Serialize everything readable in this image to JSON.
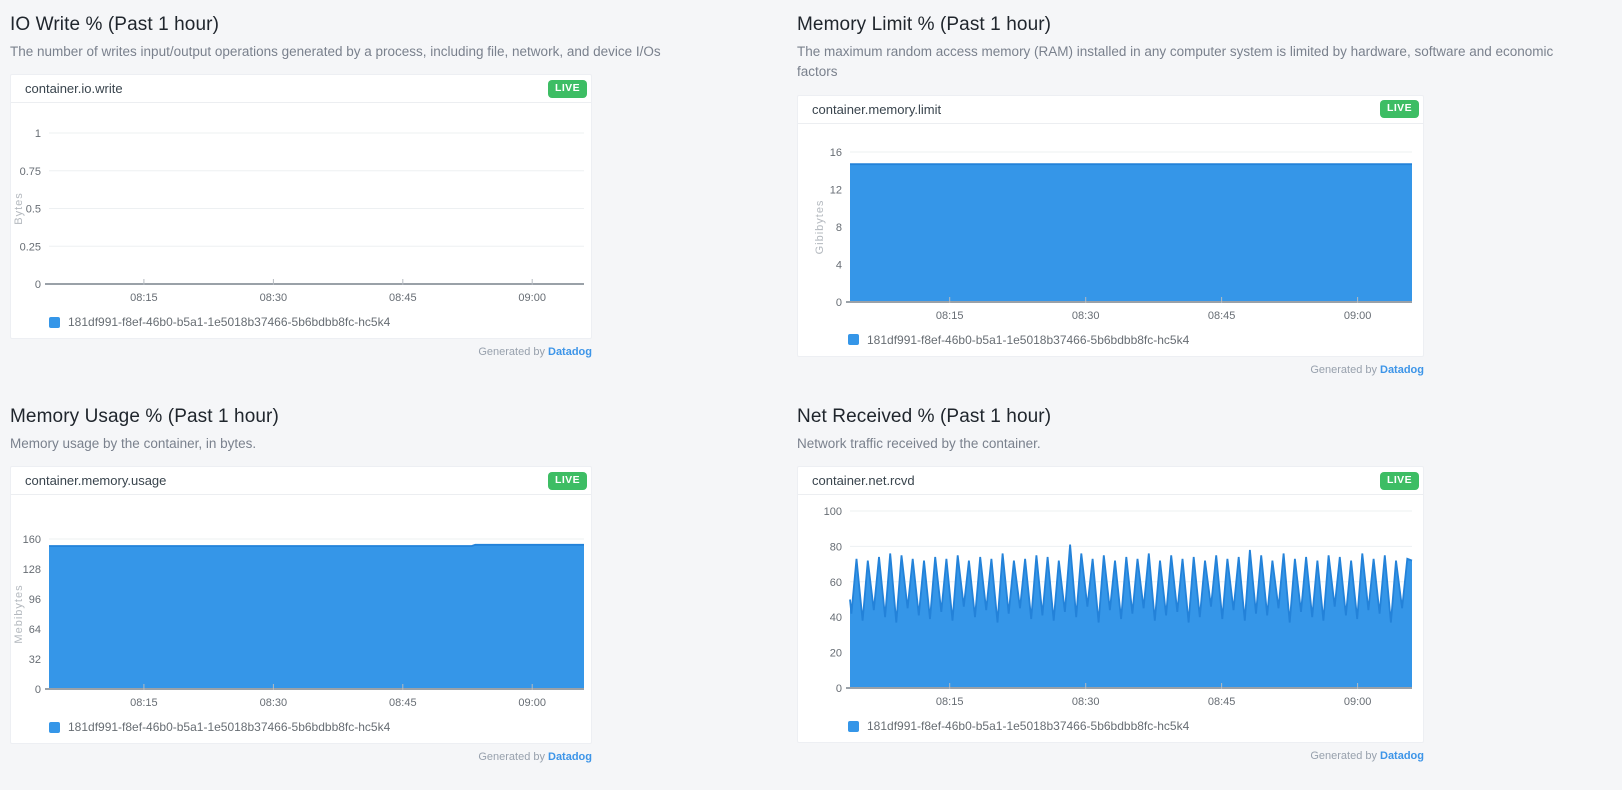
{
  "page": {
    "background": "#f5f6f8"
  },
  "badges": {
    "live": "LIVE"
  },
  "footer": {
    "generated_by": "Generated by",
    "brand": "Datadog"
  },
  "theme": {
    "series_fill": "#3596e8",
    "series_line": "#2382d9",
    "live_green": "#3dbd64",
    "link_blue": "#3d95e8",
    "grid": "#edf0f2",
    "axis": "#9aa1a8",
    "title_text": "#20262d",
    "description_text": "#7a818d"
  },
  "panels": [
    {
      "id": "io-write",
      "title": "IO Write % (Past 1 hour)",
      "description": "The number of writes input/output operations generated by a process, including file, network, and device I/Os"
    },
    {
      "id": "memory-limit",
      "title": "Memory Limit % (Past 1 hour)",
      "description": "The maximum random access memory (RAM) installed in any computer system is limited by hardware, software and economic factors"
    },
    {
      "id": "memory-usage",
      "title": "Memory Usage % (Past 1 hour)",
      "description": "Memory usage by the container, in bytes."
    },
    {
      "id": "net-received",
      "title": "Net Received % (Past 1 hour)",
      "description": "Network traffic received by the container."
    }
  ],
  "chart_data": [
    {
      "type": "area",
      "metric": "container.io.write",
      "ylabel": "Bytes",
      "y_top": 1,
      "y_ticks": [
        1,
        0.75,
        0.5,
        0.25,
        0
      ],
      "x_domain_minutes": [
        0,
        62
      ],
      "x_tick_minutes": [
        11,
        26,
        41,
        56
      ],
      "x_tick_labels": [
        "08:15",
        "08:30",
        "08:45",
        "09:00"
      ],
      "series": [
        {
          "name": "181df991-f8ef-46b0-b5a1-1e5018b37466-5b6bdbb8fc-hc5k4",
          "points": []
        }
      ]
    },
    {
      "type": "area",
      "metric": "container.memory.limit",
      "ylabel": "Gibibytes",
      "y_top": 16,
      "y_ticks": [
        16,
        12,
        8,
        4,
        0
      ],
      "x_domain_minutes": [
        0,
        62
      ],
      "x_tick_minutes": [
        11,
        26,
        41,
        56
      ],
      "x_tick_labels": [
        "08:15",
        "08:30",
        "08:45",
        "09:00"
      ],
      "series": [
        {
          "name": "181df991-f8ef-46b0-b5a1-1e5018b37466-5b6bdbb8fc-hc5k4",
          "points": [
            [
              0,
              14.7
            ],
            [
              62,
              14.7
            ]
          ]
        }
      ]
    },
    {
      "type": "area",
      "metric": "container.memory.usage",
      "ylabel": "Mebibytes",
      "y_top": 160,
      "y_ticks": [
        160,
        128,
        96,
        64,
        32,
        0
      ],
      "x_domain_minutes": [
        0,
        62
      ],
      "x_tick_minutes": [
        11,
        26,
        41,
        56
      ],
      "x_tick_labels": [
        "08:15",
        "08:30",
        "08:45",
        "09:00"
      ],
      "series": [
        {
          "name": "181df991-f8ef-46b0-b5a1-1e5018b37466-5b6bdbb8fc-hc5k4",
          "points": [
            [
              0,
              152.5
            ],
            [
              49,
              152.5
            ],
            [
              49.4,
              153.8
            ],
            [
              62,
              153.8
            ]
          ]
        }
      ]
    },
    {
      "type": "area",
      "metric": "container.net.rcvd",
      "ylabel": "",
      "y_top": 100,
      "y_ticks": [
        100,
        80,
        60,
        40,
        20,
        0
      ],
      "x_domain_minutes": [
        0,
        62
      ],
      "x_tick_minutes": [
        11,
        26,
        41,
        56
      ],
      "x_tick_labels": [
        "08:15",
        "08:30",
        "08:45",
        "09:00"
      ],
      "series": [
        {
          "name": "181df991-f8ef-46b0-b5a1-1e5018b37466-5b6bdbb8fc-hc5k4",
          "spikes": {
            "period_min": 1.24,
            "trough_offset": 0.15,
            "peak_offset": 0.72,
            "start_value": 50,
            "end_value": 72,
            "troughs": [
              42,
              38,
              44,
              40,
              37,
              45,
              41,
              39,
              43,
              38,
              46,
              40,
              44,
              37,
              42,
              45,
              39,
              41,
              38,
              43,
              40,
              46,
              37,
              44,
              39,
              42,
              45,
              38,
              41,
              43,
              37,
              40,
              46,
              39,
              44,
              38,
              42,
              41,
              45,
              37,
              43,
              40,
              38,
              46,
              41,
              39,
              44,
              42,
              37,
              45
            ],
            "peaks": [
              73,
              72,
              74,
              76,
              75,
              73,
              72,
              74,
              73,
              75,
              72,
              74,
              73,
              76,
              72,
              73,
              75,
              74,
              72,
              81,
              76,
              73,
              75,
              72,
              74,
              73,
              76,
              72,
              75,
              73,
              74,
              72,
              75,
              73,
              74,
              78,
              75,
              72,
              76,
              73,
              74,
              72,
              75,
              74,
              72,
              76,
              73,
              75,
              72,
              73
            ]
          }
        }
      ]
    }
  ]
}
